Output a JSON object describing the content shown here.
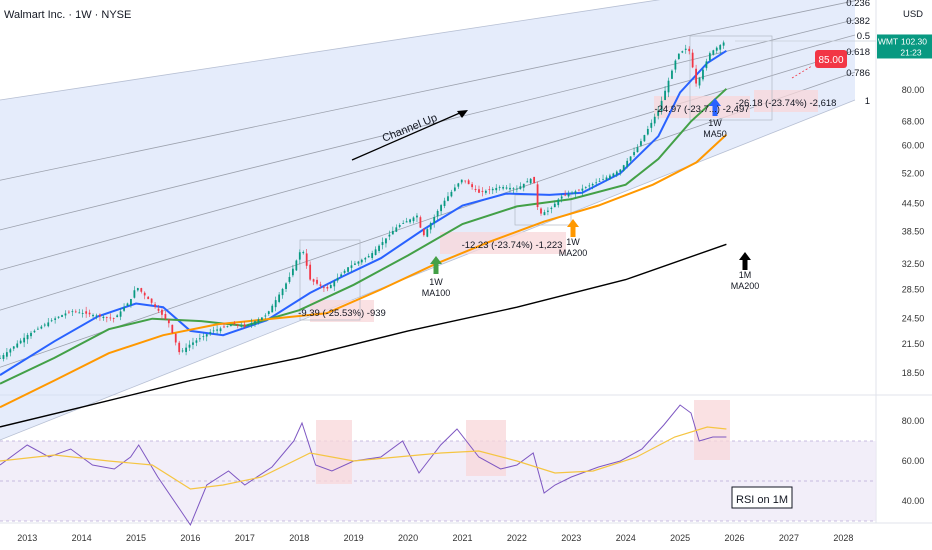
{
  "header": {
    "symbol_title": "Walmart Inc. · 1W · NYSE"
  },
  "colors": {
    "candle_up": "#089981",
    "candle_down": "#f23645",
    "ma50": "#2962ff",
    "ma100": "#43a047",
    "ma200": "#ff9800",
    "ma200_monthly": "#000000",
    "channel_fill": "#cfdcf7",
    "fib_line": "#8a8f9a",
    "rsi_line": "#7e57c2",
    "rsi_ma": "#f5c542",
    "rsi_band": "#ede7f6",
    "highlight": "#f8d7da",
    "ticker_badge": "#089981",
    "target_badge": "#f23645"
  },
  "chart_data": {
    "type": "line",
    "title": "Walmart Inc. · 1W · NYSE",
    "price_axis": {
      "currency_label": "USD",
      "scale": "log",
      "ticks": [
        "80.00",
        "68.00",
        "60.00",
        "52.00",
        "44.50",
        "38.50",
        "32.50",
        "28.50",
        "24.50",
        "21.50",
        "18.50"
      ]
    },
    "time_axis": {
      "ticks": [
        "2013",
        "2014",
        "2015",
        "2016",
        "2017",
        "2018",
        "2019",
        "2020",
        "2021",
        "2022",
        "2023",
        "2024",
        "2025",
        "2026",
        "2027",
        "2028"
      ]
    },
    "ticker_badge": {
      "symbol": "WMT",
      "price": "102.30",
      "countdown": "21:23"
    },
    "target_badge": {
      "label": "85.00",
      "value": 85.0
    },
    "fib_levels": [
      "0.236",
      "0.382",
      "0.5",
      "0.618",
      "0.786",
      "1"
    ],
    "price_series": [
      {
        "x": 2012.5,
        "y": 20.0
      },
      {
        "x": 2013.0,
        "y": 22.5
      },
      {
        "x": 2013.5,
        "y": 24.5
      },
      {
        "x": 2013.8,
        "y": 25.5
      },
      {
        "x": 2014.2,
        "y": 25.0
      },
      {
        "x": 2014.6,
        "y": 24.5
      },
      {
        "x": 2014.9,
        "y": 27.0
      },
      {
        "x": 2015.0,
        "y": 29.0
      },
      {
        "x": 2015.3,
        "y": 26.5
      },
      {
        "x": 2015.6,
        "y": 24.0
      },
      {
        "x": 2015.8,
        "y": 20.5
      },
      {
        "x": 2016.0,
        "y": 21.5
      },
      {
        "x": 2016.4,
        "y": 23.0
      },
      {
        "x": 2016.8,
        "y": 23.8
      },
      {
        "x": 2017.0,
        "y": 23.5
      },
      {
        "x": 2017.4,
        "y": 25.0
      },
      {
        "x": 2017.8,
        "y": 30.0
      },
      {
        "x": 2018.05,
        "y": 35.5
      },
      {
        "x": 2018.2,
        "y": 30.0
      },
      {
        "x": 2018.5,
        "y": 28.5
      },
      {
        "x": 2018.9,
        "y": 32.0
      },
      {
        "x": 2019.3,
        "y": 34.0
      },
      {
        "x": 2019.8,
        "y": 39.5
      },
      {
        "x": 2020.2,
        "y": 42.0
      },
      {
        "x": 2020.25,
        "y": 37.0
      },
      {
        "x": 2020.6,
        "y": 44.0
      },
      {
        "x": 2020.9,
        "y": 49.0
      },
      {
        "x": 2021.0,
        "y": 50.5
      },
      {
        "x": 2021.3,
        "y": 47.0
      },
      {
        "x": 2021.7,
        "y": 48.5
      },
      {
        "x": 2022.0,
        "y": 48.0
      },
      {
        "x": 2022.3,
        "y": 51.0
      },
      {
        "x": 2022.4,
        "y": 42.0
      },
      {
        "x": 2022.6,
        "y": 43.0
      },
      {
        "x": 2022.8,
        "y": 46.0
      },
      {
        "x": 2023.2,
        "y": 48.0
      },
      {
        "x": 2023.6,
        "y": 50.5
      },
      {
        "x": 2023.9,
        "y": 53.0
      },
      {
        "x": 2024.2,
        "y": 59.0
      },
      {
        "x": 2024.6,
        "y": 72.0
      },
      {
        "x": 2024.95,
        "y": 96.0
      },
      {
        "x": 2025.15,
        "y": 100.0
      },
      {
        "x": 2025.3,
        "y": 82.0
      },
      {
        "x": 2025.55,
        "y": 97.0
      },
      {
        "x": 2025.8,
        "y": 102.3
      }
    ],
    "moving_averages": [
      {
        "name": "1W MA50",
        "color": "#2962ff",
        "points": [
          {
            "x": 2012.5,
            "y": 18.3
          },
          {
            "x": 2013.5,
            "y": 21.8
          },
          {
            "x": 2014.3,
            "y": 24.8
          },
          {
            "x": 2015.0,
            "y": 26.5
          },
          {
            "x": 2015.5,
            "y": 26.0
          },
          {
            "x": 2016.0,
            "y": 23.0
          },
          {
            "x": 2016.6,
            "y": 22.5
          },
          {
            "x": 2017.4,
            "y": 24.3
          },
          {
            "x": 2018.2,
            "y": 28.0
          },
          {
            "x": 2018.8,
            "y": 30.5
          },
          {
            "x": 2019.5,
            "y": 33.5
          },
          {
            "x": 2020.3,
            "y": 39.0
          },
          {
            "x": 2021.0,
            "y": 44.0
          },
          {
            "x": 2021.8,
            "y": 46.8
          },
          {
            "x": 2022.6,
            "y": 46.5
          },
          {
            "x": 2023.2,
            "y": 47.0
          },
          {
            "x": 2023.9,
            "y": 52.0
          },
          {
            "x": 2024.6,
            "y": 63.0
          },
          {
            "x": 2025.0,
            "y": 79.0
          },
          {
            "x": 2025.5,
            "y": 92.0
          },
          {
            "x": 2025.85,
            "y": 98.0
          }
        ]
      },
      {
        "name": "1W MA100",
        "color": "#43a047",
        "points": [
          {
            "x": 2012.5,
            "y": 17.5
          },
          {
            "x": 2013.5,
            "y": 20.0
          },
          {
            "x": 2014.5,
            "y": 23.2
          },
          {
            "x": 2015.3,
            "y": 24.5
          },
          {
            "x": 2016.2,
            "y": 24.2
          },
          {
            "x": 2017.0,
            "y": 23.6
          },
          {
            "x": 2018.0,
            "y": 25.6
          },
          {
            "x": 2019.0,
            "y": 29.2
          },
          {
            "x": 2020.0,
            "y": 34.0
          },
          {
            "x": 2021.0,
            "y": 40.0
          },
          {
            "x": 2022.0,
            "y": 43.8
          },
          {
            "x": 2023.0,
            "y": 45.5
          },
          {
            "x": 2024.0,
            "y": 49.0
          },
          {
            "x": 2024.6,
            "y": 56.0
          },
          {
            "x": 2025.2,
            "y": 68.0
          },
          {
            "x": 2025.85,
            "y": 80.5
          }
        ]
      },
      {
        "name": "1W MA200",
        "color": "#ff9800",
        "points": [
          {
            "x": 2012.5,
            "y": 15.5
          },
          {
            "x": 2013.5,
            "y": 17.8
          },
          {
            "x": 2014.5,
            "y": 20.5
          },
          {
            "x": 2015.5,
            "y": 22.5
          },
          {
            "x": 2016.5,
            "y": 23.8
          },
          {
            "x": 2017.5,
            "y": 24.5
          },
          {
            "x": 2018.5,
            "y": 25.2
          },
          {
            "x": 2019.5,
            "y": 28.5
          },
          {
            "x": 2020.5,
            "y": 32.5
          },
          {
            "x": 2021.5,
            "y": 36.5
          },
          {
            "x": 2022.5,
            "y": 40.5
          },
          {
            "x": 2023.5,
            "y": 44.0
          },
          {
            "x": 2024.5,
            "y": 49.0
          },
          {
            "x": 2025.3,
            "y": 55.0
          },
          {
            "x": 2025.85,
            "y": 63.5
          }
        ]
      },
      {
        "name": "1M MA200",
        "color": "#000000",
        "points": [
          {
            "x": 2012.5,
            "y": 14.0
          },
          {
            "x": 2014.0,
            "y": 15.5
          },
          {
            "x": 2016.0,
            "y": 17.8
          },
          {
            "x": 2018.0,
            "y": 20.0
          },
          {
            "x": 2020.0,
            "y": 23.0
          },
          {
            "x": 2022.0,
            "y": 26.0
          },
          {
            "x": 2024.0,
            "y": 30.0
          },
          {
            "x": 2025.85,
            "y": 36.0
          }
        ]
      }
    ],
    "drawdowns": [
      {
        "label": "-9.39 (-25.53%) -939",
        "from_x": 2018.05,
        "to_x": 2018.55
      },
      {
        "label": "-12.23 (-23.74%) -1,223",
        "from_x": 2022.3,
        "to_x": 2022.9
      },
      {
        "label": "-24.97 (-23.7...) -2,497",
        "from_x": 2025.15,
        "to_x": 2025.45
      },
      {
        "label": "-26.18 (-23.74%) -2,618",
        "from_x": 2025.85,
        "to_x": 2026.55
      }
    ],
    "annotations": [
      {
        "text": "Channel Up"
      },
      {
        "line1": "1W",
        "line2": "MA100",
        "x": 2020.2,
        "arrow_color": "#43a047"
      },
      {
        "line1": "1W",
        "line2": "MA200",
        "x": 2022.7,
        "arrow_color": "#ff9800"
      },
      {
        "line1": "1W",
        "line2": "MA50",
        "x": 2025.3,
        "arrow_color": "#2962ff"
      },
      {
        "line1": "1M",
        "line2": "MA200",
        "x": 2026.0,
        "arrow_color": "#000000"
      }
    ],
    "rsi": {
      "label": "RSI on 1M",
      "axis_ticks": [
        "80.00",
        "60.00",
        "40.00"
      ],
      "levels": {
        "upper": 70,
        "middle": 50,
        "lower": 30
      },
      "series": [
        {
          "x": 2012.5,
          "y": 58
        },
        {
          "x": 2013.0,
          "y": 68
        },
        {
          "x": 2013.4,
          "y": 62
        },
        {
          "x": 2013.8,
          "y": 66
        },
        {
          "x": 2014.2,
          "y": 58
        },
        {
          "x": 2014.6,
          "y": 56
        },
        {
          "x": 2014.9,
          "y": 62
        },
        {
          "x": 2015.05,
          "y": 68
        },
        {
          "x": 2015.4,
          "y": 52
        },
        {
          "x": 2015.8,
          "y": 36
        },
        {
          "x": 2016.0,
          "y": 28
        },
        {
          "x": 2016.3,
          "y": 48
        },
        {
          "x": 2016.7,
          "y": 55
        },
        {
          "x": 2017.0,
          "y": 48
        },
        {
          "x": 2017.5,
          "y": 57
        },
        {
          "x": 2017.9,
          "y": 70
        },
        {
          "x": 2018.05,
          "y": 79
        },
        {
          "x": 2018.3,
          "y": 58
        },
        {
          "x": 2018.6,
          "y": 55
        },
        {
          "x": 2019.0,
          "y": 60
        },
        {
          "x": 2019.5,
          "y": 62
        },
        {
          "x": 2019.9,
          "y": 70
        },
        {
          "x": 2020.2,
          "y": 54
        },
        {
          "x": 2020.6,
          "y": 68
        },
        {
          "x": 2020.9,
          "y": 76
        },
        {
          "x": 2021.3,
          "y": 62
        },
        {
          "x": 2021.7,
          "y": 56
        },
        {
          "x": 2022.0,
          "y": 58
        },
        {
          "x": 2022.3,
          "y": 64
        },
        {
          "x": 2022.5,
          "y": 44
        },
        {
          "x": 2022.7,
          "y": 48
        },
        {
          "x": 2023.0,
          "y": 52
        },
        {
          "x": 2023.5,
          "y": 57
        },
        {
          "x": 2023.9,
          "y": 60
        },
        {
          "x": 2024.3,
          "y": 66
        },
        {
          "x": 2024.7,
          "y": 78
        },
        {
          "x": 2025.0,
          "y": 88
        },
        {
          "x": 2025.2,
          "y": 84
        },
        {
          "x": 2025.35,
          "y": 70
        },
        {
          "x": 2025.6,
          "y": 72
        },
        {
          "x": 2025.85,
          "y": 72
        }
      ],
      "ma_series": [
        {
          "x": 2012.5,
          "y": 60
        },
        {
          "x": 2013.5,
          "y": 63
        },
        {
          "x": 2014.5,
          "y": 60
        },
        {
          "x": 2015.3,
          "y": 58
        },
        {
          "x": 2016.0,
          "y": 46
        },
        {
          "x": 2016.6,
          "y": 48
        },
        {
          "x": 2017.3,
          "y": 52
        },
        {
          "x": 2018.2,
          "y": 64
        },
        {
          "x": 2019.0,
          "y": 60
        },
        {
          "x": 2019.8,
          "y": 62
        },
        {
          "x": 2020.6,
          "y": 64
        },
        {
          "x": 2021.3,
          "y": 65
        },
        {
          "x": 2022.0,
          "y": 60
        },
        {
          "x": 2022.7,
          "y": 54
        },
        {
          "x": 2023.4,
          "y": 55
        },
        {
          "x": 2024.2,
          "y": 62
        },
        {
          "x": 2024.9,
          "y": 72
        },
        {
          "x": 2025.5,
          "y": 77
        },
        {
          "x": 2025.85,
          "y": 76
        }
      ]
    }
  }
}
